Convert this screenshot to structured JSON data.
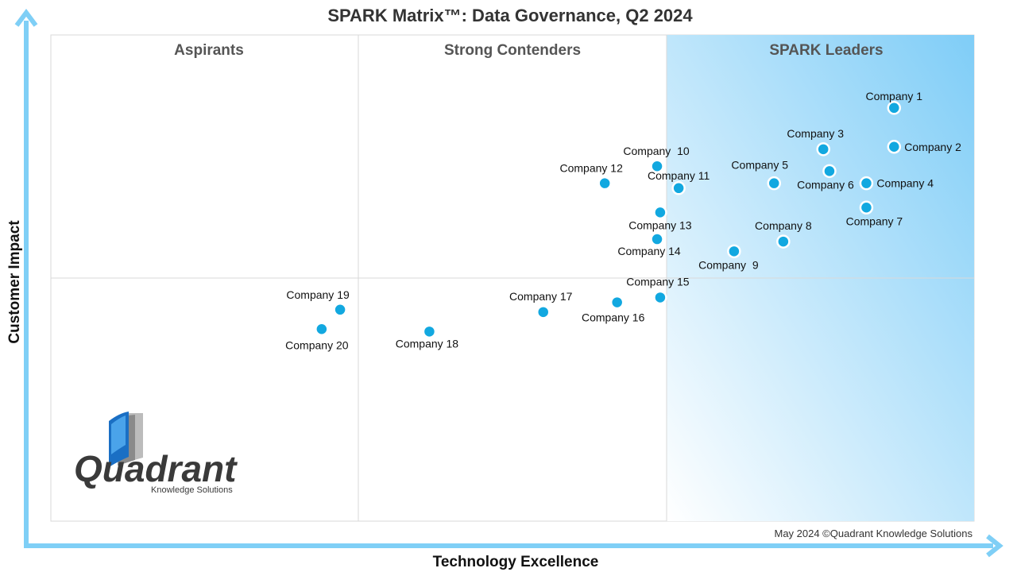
{
  "chart_data": {
    "type": "scatter",
    "title": "SPARK Matrix™: Data Governance, Q2 2024",
    "xlabel": "Technology Excellence",
    "ylabel": "Customer Impact",
    "quadrants": [
      "Aspirants",
      "Strong Contenders",
      "SPARK Leaders"
    ],
    "copyright": "May 2024 ©Quadrant Knowledge Solutions",
    "logo": {
      "name": "Quadrant",
      "tagline": "Knowledge Solutions"
    },
    "colors": {
      "point": "#12a8e0",
      "axis_arrow": "#7fcff6",
      "leaders_gradient_start": "#7fcdf7",
      "leaders_gradient_end": "#ffffff",
      "grid": "#d9d9d9"
    },
    "points": [
      {
        "name": "Company 1",
        "x": 2.74,
        "y": 1.7
      },
      {
        "name": "Company 2",
        "x": 2.74,
        "y": 1.54
      },
      {
        "name": "Company 3",
        "x": 2.51,
        "y": 1.53
      },
      {
        "name": "Company 4",
        "x": 2.65,
        "y": 1.39
      },
      {
        "name": "Company 5",
        "x": 2.35,
        "y": 1.39
      },
      {
        "name": "Company 6",
        "x": 2.53,
        "y": 1.44
      },
      {
        "name": "Company 7",
        "x": 2.65,
        "y": 1.29
      },
      {
        "name": "Company 8",
        "x": 2.38,
        "y": 1.15
      },
      {
        "name": "Company  9",
        "x": 2.22,
        "y": 1.11
      },
      {
        "name": "Company  10",
        "x": 1.97,
        "y": 1.46
      },
      {
        "name": "Company 11",
        "x": 2.04,
        "y": 1.37
      },
      {
        "name": "Company 12",
        "x": 1.8,
        "y": 1.39
      },
      {
        "name": "Company 13",
        "x": 1.98,
        "y": 1.27
      },
      {
        "name": "Company 14",
        "x": 1.97,
        "y": 1.16
      },
      {
        "name": "Company 15",
        "x": 1.98,
        "y": 0.92
      },
      {
        "name": "Company 16",
        "x": 1.84,
        "y": 0.9
      },
      {
        "name": "Company 17",
        "x": 1.6,
        "y": 0.86
      },
      {
        "name": "Company 18",
        "x": 1.23,
        "y": 0.78
      },
      {
        "name": "Company 19",
        "x": 0.94,
        "y": 0.87
      },
      {
        "name": "Company 20",
        "x": 0.88,
        "y": 0.79
      }
    ]
  }
}
